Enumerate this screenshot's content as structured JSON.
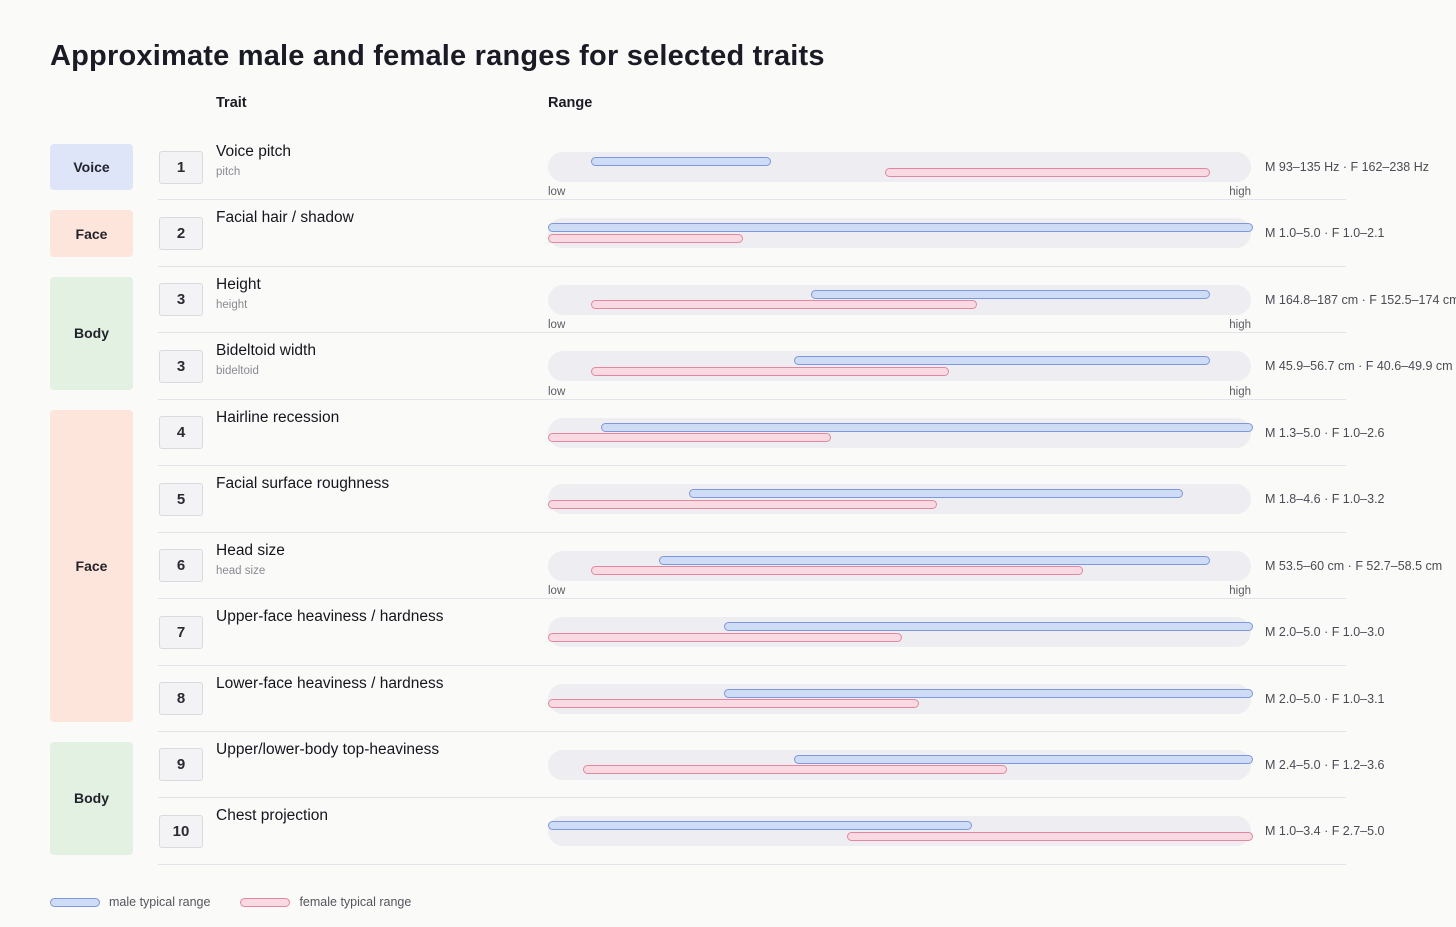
{
  "page": {
    "title": "Approximate male and female ranges for selected traits",
    "col_trait": "Trait",
    "col_range": "Range"
  },
  "legend": {
    "male_label": "male typical range",
    "female_label": "female typical range"
  },
  "colors": {
    "male_fill": "#cfdcf5",
    "male_border": "#7d98dc",
    "female_fill": "#f9dae3",
    "female_border": "#e2879f",
    "track": "#ededf2",
    "voice_badge_bg": "#dfe5f9",
    "face_badge_bg": "#fde5db",
    "body_badge_bg": "#e3f1e2"
  },
  "categories": [
    {
      "label": "Voice",
      "type": "voice",
      "start_row": 0,
      "row_span": 1
    },
    {
      "label": "Face",
      "type": "face",
      "start_row": 1,
      "row_span": 1
    },
    {
      "label": "Body",
      "type": "body",
      "start_row": 2,
      "row_span": 2
    },
    {
      "label": "Face",
      "type": "face",
      "start_row": 4,
      "row_span": 5
    },
    {
      "label": "Body",
      "type": "body",
      "start_row": 9,
      "row_span": 2
    }
  ],
  "chart_data": {
    "type": "range-bar",
    "series": [
      "male typical range",
      "female typical range"
    ],
    "axis_low_label": "low",
    "axis_high_label": "high",
    "rows": [
      {
        "num": "1",
        "trait": "Voice pitch",
        "subtitle": "pitch",
        "unit": "Hz",
        "male_range": [
          93,
          135
        ],
        "female_range": [
          162,
          238
        ],
        "label": "M 93–135 Hz · F 162–238 Hz",
        "show_axis": true,
        "male_pos": [
          6.1,
          31.5
        ],
        "female_pos": [
          47.9,
          93.9
        ]
      },
      {
        "num": "2",
        "trait": "Facial hair / shadow",
        "subtitle": "",
        "unit": "",
        "male_range": [
          1.0,
          5.0
        ],
        "female_range": [
          1.0,
          2.1
        ],
        "label": "M 1.0–5.0 · F 1.0–2.1",
        "show_axis": false,
        "male_pos": [
          0,
          100
        ],
        "female_pos": [
          0,
          27.5
        ]
      },
      {
        "num": "3",
        "trait": "Height",
        "subtitle": "height",
        "unit": "cm",
        "male_range": [
          164.8,
          187
        ],
        "female_range": [
          152.5,
          174
        ],
        "label": "M 164.8–187 cm · F 152.5–174 cm",
        "show_axis": true,
        "male_pos": [
          37.4,
          93.9
        ],
        "female_pos": [
          6.1,
          60.8
        ]
      },
      {
        "num": "3",
        "trait": "Bideltoid width",
        "subtitle": "bideltoid",
        "unit": "cm",
        "male_range": [
          45.9,
          56.7
        ],
        "female_range": [
          40.6,
          49.9
        ],
        "label": "M 45.9–56.7 cm · F 40.6–49.9 cm",
        "show_axis": true,
        "male_pos": [
          35.0,
          93.9
        ],
        "female_pos": [
          6.1,
          56.8
        ]
      },
      {
        "num": "4",
        "trait": "Hairline recession",
        "subtitle": "",
        "unit": "",
        "male_range": [
          1.3,
          5.0
        ],
        "female_range": [
          1.0,
          2.6
        ],
        "label": "M 1.3–5.0 · F 1.0–2.6",
        "show_axis": false,
        "male_pos": [
          7.5,
          100
        ],
        "female_pos": [
          0,
          40
        ]
      },
      {
        "num": "5",
        "trait": "Facial surface roughness",
        "subtitle": "",
        "unit": "",
        "male_range": [
          1.8,
          4.6
        ],
        "female_range": [
          1.0,
          3.2
        ],
        "label": "M 1.8–4.6 · F 1.0–3.2",
        "show_axis": false,
        "male_pos": [
          20,
          90
        ],
        "female_pos": [
          0,
          55
        ]
      },
      {
        "num": "6",
        "trait": "Head size",
        "subtitle": "head size",
        "unit": "cm",
        "male_range": [
          53.5,
          60
        ],
        "female_range": [
          52.7,
          58.5
        ],
        "label": "M 53.5–60 cm · F 52.7–58.5 cm",
        "show_axis": true,
        "male_pos": [
          15.8,
          93.9
        ],
        "female_pos": [
          6.1,
          75.8
        ]
      },
      {
        "num": "7",
        "trait": "Upper-face heaviness / hardness",
        "subtitle": "",
        "unit": "",
        "male_range": [
          2.0,
          5.0
        ],
        "female_range": [
          1.0,
          3.0
        ],
        "label": "M 2.0–5.0 · F 1.0–3.0",
        "show_axis": false,
        "male_pos": [
          25,
          100
        ],
        "female_pos": [
          0,
          50
        ]
      },
      {
        "num": "8",
        "trait": "Lower-face heaviness / hardness",
        "subtitle": "",
        "unit": "",
        "male_range": [
          2.0,
          5.0
        ],
        "female_range": [
          1.0,
          3.1
        ],
        "label": "M 2.0–5.0 · F 1.0–3.1",
        "show_axis": false,
        "male_pos": [
          25,
          100
        ],
        "female_pos": [
          0,
          52.5
        ]
      },
      {
        "num": "9",
        "trait": "Upper/lower-body top-heaviness",
        "subtitle": "",
        "unit": "",
        "male_range": [
          2.4,
          5.0
        ],
        "female_range": [
          1.2,
          3.6
        ],
        "label": "M 2.4–5.0 · F 1.2–3.6",
        "show_axis": false,
        "male_pos": [
          35,
          100
        ],
        "female_pos": [
          5,
          65
        ]
      },
      {
        "num": "10",
        "trait": "Chest projection",
        "subtitle": "",
        "unit": "",
        "male_range": [
          1.0,
          3.4
        ],
        "female_range": [
          2.7,
          5.0
        ],
        "label": "M 1.0–3.4 · F 2.7–5.0",
        "show_axis": false,
        "male_pos": [
          0,
          60
        ],
        "female_pos": [
          42.5,
          100
        ]
      }
    ]
  }
}
